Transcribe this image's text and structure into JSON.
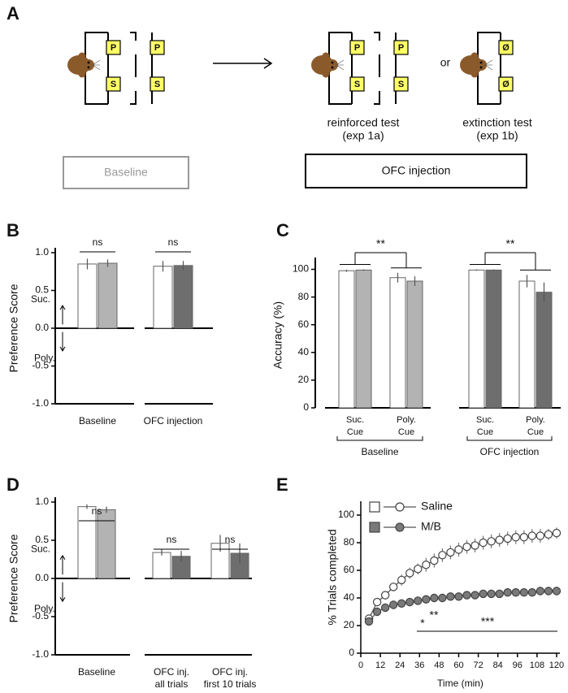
{
  "diagram": {
    "panel_label": "A",
    "ports": [
      "P",
      "S",
      "Ø"
    ],
    "connector": "or",
    "reinforced_label": "reinforced test",
    "reinforced_sub": "(exp 1a)",
    "extinction_label": "extinction test",
    "extinction_sub": "(exp 1b)",
    "baseline_box": "Baseline",
    "ofc_box": "OFC injection"
  },
  "chart_data": [
    {
      "type": "bar",
      "panel_label": "B",
      "ylabel": "Preference Score",
      "ylim": [
        -1,
        1
      ],
      "yticks": [
        {
          "value": -1,
          "label": "-1.0"
        },
        -0.5,
        {
          "value": 0,
          "label": "0.0"
        },
        0.5,
        {
          "value": 1,
          "label": "1.0"
        }
      ],
      "categories": [
        "Baseline",
        "OFC injection"
      ],
      "series": [
        {
          "color": "#ffffff",
          "values": [
            0.85,
            0.82
          ],
          "errors": [
            0.07,
            0.07
          ]
        },
        {
          "colors": [
            "#b3b3b3",
            "#6e6e6e"
          ],
          "values": [
            0.86,
            0.83
          ],
          "errors": [
            0.05,
            0.06
          ]
        }
      ],
      "annotations": [
        "ns",
        "ns"
      ],
      "direction_labels": [
        "Suc.",
        "Poly."
      ]
    },
    {
      "type": "bar",
      "panel_label": "C",
      "ylabel": "Accuracy (%)",
      "ylim": [
        0,
        105
      ],
      "yticks": [
        0,
        20,
        40,
        60,
        80,
        100
      ],
      "categories": [
        [
          "Suc.",
          "Cue"
        ],
        [
          "Poly.",
          "Cue"
        ],
        [
          "Suc.",
          "Cue"
        ],
        [
          "Poly.",
          "Cue"
        ]
      ],
      "group_labels": [
        "Baseline",
        "OFC injection"
      ],
      "series": [
        {
          "color": "#ffffff",
          "values": [
            99,
            94,
            99.5,
            91.5
          ],
          "errors": [
            0.8,
            3.5,
            0.5,
            4.5
          ]
        },
        {
          "colors": [
            "#b3b3b3",
            "#b3b3b3",
            "#6e6e6e",
            "#6e6e6e"
          ],
          "values": [
            99.5,
            91.5,
            99.5,
            83.5
          ],
          "errors": [
            0.5,
            3.5,
            0.5,
            7
          ]
        }
      ],
      "annotations": [
        "**",
        "**"
      ]
    },
    {
      "type": "bar",
      "panel_label": "D",
      "ylabel": "Preference Score",
      "ylim": [
        -1,
        1
      ],
      "yticks": [
        {
          "value": -1,
          "label": "-1.0"
        },
        -0.5,
        {
          "value": 0,
          "label": "0.0"
        },
        0.5,
        {
          "value": 1,
          "label": "1.0"
        }
      ],
      "categories": [
        [
          "Baseline"
        ],
        [
          "OFC inj.",
          "all trials"
        ],
        [
          "OFC inj.",
          "first 10 trials"
        ]
      ],
      "series": [
        {
          "color": "#ffffff",
          "values": [
            0.94,
            0.34,
            0.46
          ],
          "errors": [
            0.03,
            0.04,
            0.11
          ]
        },
        {
          "colors": [
            "#b3b3b3",
            "#6e6e6e",
            "#6e6e6e"
          ],
          "values": [
            0.9,
            0.29,
            0.33
          ],
          "errors": [
            0.04,
            0.07,
            0.13
          ]
        }
      ],
      "annotations": [
        "ns",
        "ns",
        "ns"
      ],
      "direction_labels": [
        "Suc.",
        "Poly."
      ]
    },
    {
      "type": "line",
      "panel_label": "E",
      "ylabel": "% Trials completed",
      "xlabel": "Time (min)",
      "xlim": [
        0,
        122
      ],
      "ylim": [
        0,
        110
      ],
      "xticks": [
        0,
        12,
        24,
        36,
        48,
        60,
        72,
        84,
        96,
        108,
        120
      ],
      "yticks": [
        0,
        20,
        40,
        60,
        80,
        100
      ],
      "x": [
        5,
        10,
        15,
        20,
        25,
        30,
        35,
        40,
        45,
        50,
        55,
        60,
        65,
        70,
        75,
        80,
        85,
        90,
        95,
        100,
        105,
        110,
        115,
        120
      ],
      "series": [
        {
          "name": "Saline",
          "color": "#ffffff",
          "values": [
            25,
            37,
            42,
            48,
            53,
            58,
            61,
            64,
            67,
            71,
            73,
            75,
            77,
            78,
            80,
            81,
            82,
            83,
            84,
            84,
            85,
            85,
            86,
            87
          ],
          "errors": [
            2,
            3,
            3,
            3,
            4,
            4,
            4,
            5,
            5,
            5,
            5,
            5,
            5,
            5,
            5,
            5,
            5,
            5,
            5,
            5,
            5,
            5,
            4,
            4
          ]
        },
        {
          "name": "M/B",
          "color": "#7a7a7a",
          "values": [
            23,
            30,
            33,
            35,
            36,
            37,
            38,
            39,
            40,
            40,
            41,
            41,
            42,
            42,
            43,
            43,
            43,
            44,
            44,
            44,
            44,
            45,
            45,
            45
          ],
          "errors": [
            2,
            2,
            3,
            3,
            3,
            3,
            3,
            3,
            3,
            3,
            3,
            3,
            3,
            3,
            3,
            3,
            3,
            3,
            3,
            3,
            3,
            3,
            3,
            3
          ]
        }
      ],
      "annotations": [
        "*",
        "**",
        "***"
      ]
    }
  ]
}
